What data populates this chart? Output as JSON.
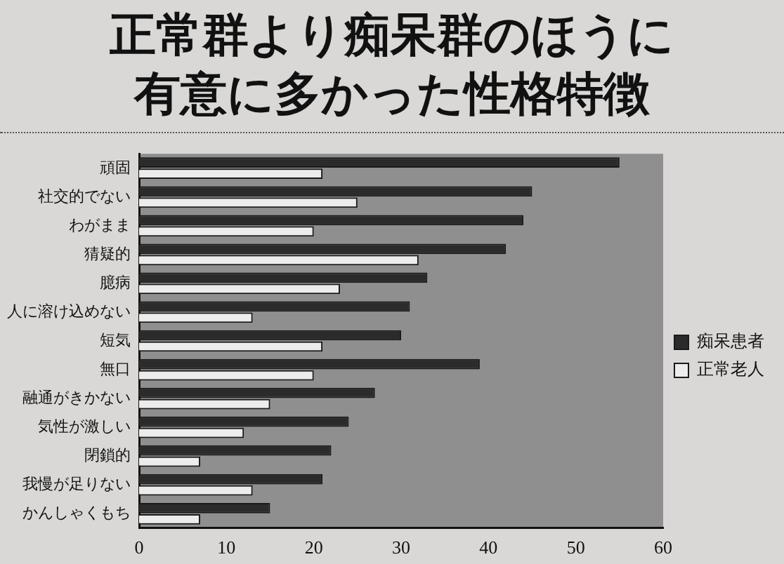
{
  "chart_data": {
    "type": "bar",
    "orientation": "horizontal",
    "title": "正常群より痴呆群のほうに有意に多かった性格特徴",
    "categories": [
      "頑固",
      "社交的でない",
      "わがまま",
      "猜疑的",
      "臆病",
      "人に溶け込めない",
      "短気",
      "無口",
      "融通がきかない",
      "気性が激しい",
      "閉鎖的",
      "我慢が足りない",
      "かんしゃくもち"
    ],
    "series": [
      {
        "name": "痴呆患者",
        "color": "#2b2b2b",
        "values": [
          55,
          45,
          44,
          42,
          33,
          31,
          30,
          39,
          27,
          24,
          22,
          21,
          15
        ]
      },
      {
        "name": "正常老人",
        "color": "#ececec",
        "values": [
          21,
          25,
          20,
          32,
          23,
          13,
          21,
          20,
          15,
          12,
          7,
          13,
          7
        ]
      }
    ],
    "xlim": [
      0,
      60
    ],
    "xticks": [
      0,
      10,
      20,
      30,
      40,
      50,
      60
    ],
    "legend": "right",
    "grid": false
  }
}
